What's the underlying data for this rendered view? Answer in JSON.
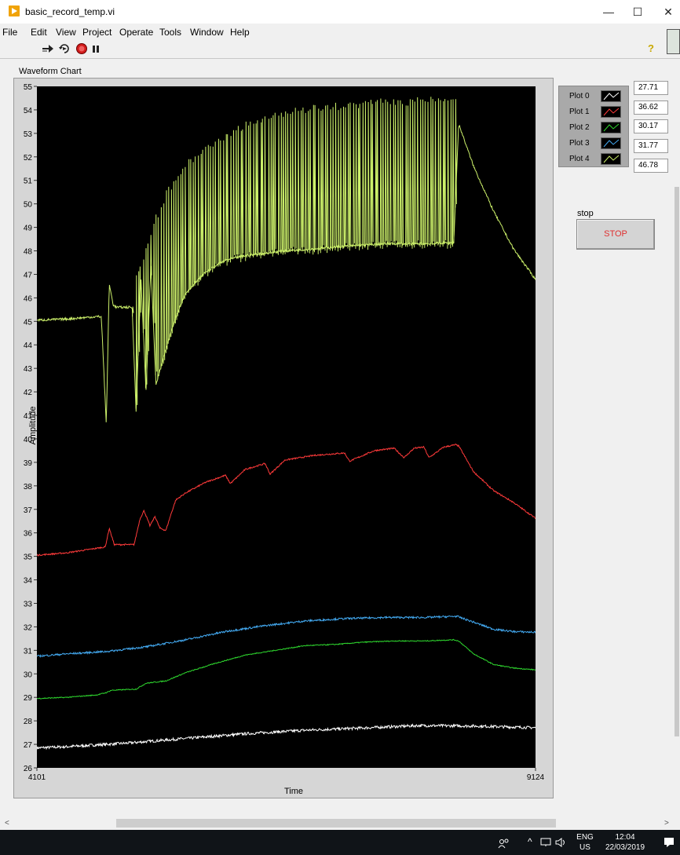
{
  "window": {
    "title": "basic_record_temp.vi",
    "minimize": "—",
    "maximize": "☐",
    "close": "✕"
  },
  "menu": [
    "File",
    "Edit",
    "View",
    "Project",
    "Operate",
    "Tools",
    "Window",
    "Help"
  ],
  "toolbar": {
    "run_icon": "run-arrow-icon",
    "run_continuous_icon": "run-continuously-icon",
    "abort_icon": "abort-icon",
    "pause_icon": "pause-icon",
    "help_icon": "help-icon",
    "help_glyph": "?"
  },
  "chart_label": "Waveform Chart",
  "chart_data": {
    "type": "line",
    "xlabel": "Time",
    "ylabel": "Amplitude",
    "xlim": [
      4101,
      9124
    ],
    "ylim": [
      26,
      55
    ],
    "x_ticks": [
      "4101",
      "9124"
    ],
    "y_ticks": [
      "26",
      "27",
      "28",
      "29",
      "30",
      "31",
      "32",
      "33",
      "34",
      "35",
      "36",
      "37",
      "38",
      "39",
      "40",
      "41",
      "42",
      "43",
      "44",
      "45",
      "46",
      "47",
      "48",
      "49",
      "50",
      "51",
      "52",
      "53",
      "54",
      "55"
    ],
    "background": "#000000",
    "series": [
      {
        "name": "Plot 0",
        "color": "#ffffff",
        "noise": 0.06,
        "points": [
          [
            4101,
            26.85
          ],
          [
            4400,
            26.9
          ],
          [
            5000,
            27.05
          ],
          [
            5600,
            27.25
          ],
          [
            6200,
            27.45
          ],
          [
            6800,
            27.6
          ],
          [
            7400,
            27.7
          ],
          [
            7950,
            27.8
          ],
          [
            8500,
            27.78
          ],
          [
            9124,
            27.71
          ]
        ]
      },
      {
        "name": "Plot 1",
        "color": "#ff3a3a",
        "noise": 0.03,
        "points": [
          [
            4101,
            35.05
          ],
          [
            4400,
            35.15
          ],
          [
            4790,
            35.4
          ],
          [
            4830,
            36.2
          ],
          [
            4880,
            35.5
          ],
          [
            5080,
            35.5
          ],
          [
            5140,
            36.6
          ],
          [
            5180,
            36.95
          ],
          [
            5240,
            36.3
          ],
          [
            5290,
            36.7
          ],
          [
            5340,
            36.2
          ],
          [
            5400,
            36.1
          ],
          [
            5460,
            36.9
          ],
          [
            5500,
            37.4
          ],
          [
            5600,
            37.7
          ],
          [
            5800,
            38.15
          ],
          [
            6000,
            38.45
          ],
          [
            6050,
            38.1
          ],
          [
            6200,
            38.7
          ],
          [
            6400,
            38.95
          ],
          [
            6450,
            38.5
          ],
          [
            6600,
            39.1
          ],
          [
            6900,
            39.3
          ],
          [
            7200,
            39.4
          ],
          [
            7250,
            39.05
          ],
          [
            7500,
            39.5
          ],
          [
            7700,
            39.6
          ],
          [
            7800,
            39.2
          ],
          [
            7900,
            39.6
          ],
          [
            8000,
            39.65
          ],
          [
            8050,
            39.2
          ],
          [
            8200,
            39.65
          ],
          [
            8320,
            39.75
          ],
          [
            8350,
            39.7
          ],
          [
            8500,
            38.6
          ],
          [
            8700,
            37.8
          ],
          [
            8900,
            37.3
          ],
          [
            9124,
            36.62
          ]
        ]
      },
      {
        "name": "Plot 2",
        "color": "#2ed62e",
        "noise": 0.02,
        "points": [
          [
            4101,
            28.95
          ],
          [
            4400,
            29.0
          ],
          [
            4700,
            29.1
          ],
          [
            4800,
            29.2
          ],
          [
            4850,
            29.3
          ],
          [
            5100,
            29.35
          ],
          [
            5200,
            29.6
          ],
          [
            5400,
            29.7
          ],
          [
            5600,
            30.05
          ],
          [
            5900,
            30.45
          ],
          [
            6200,
            30.8
          ],
          [
            6500,
            31.0
          ],
          [
            6800,
            31.2
          ],
          [
            7100,
            31.25
          ],
          [
            7400,
            31.35
          ],
          [
            7700,
            31.4
          ],
          [
            8000,
            31.4
          ],
          [
            8300,
            31.45
          ],
          [
            8350,
            31.4
          ],
          [
            8500,
            30.85
          ],
          [
            8700,
            30.4
          ],
          [
            8900,
            30.25
          ],
          [
            9124,
            30.17
          ]
        ]
      },
      {
        "name": "Plot 3",
        "color": "#43aaf2",
        "noise": 0.04,
        "points": [
          [
            4101,
            30.75
          ],
          [
            4400,
            30.85
          ],
          [
            4800,
            30.95
          ],
          [
            5200,
            31.15
          ],
          [
            5600,
            31.45
          ],
          [
            6000,
            31.8
          ],
          [
            6400,
            32.05
          ],
          [
            6800,
            32.25
          ],
          [
            7200,
            32.35
          ],
          [
            7600,
            32.4
          ],
          [
            8000,
            32.4
          ],
          [
            8330,
            32.45
          ],
          [
            8500,
            32.2
          ],
          [
            8700,
            31.9
          ],
          [
            8900,
            31.8
          ],
          [
            9124,
            31.77
          ]
        ]
      },
      {
        "name": "Plot 4",
        "color": "#ccf06a",
        "noise": 0.05,
        "points": [
          [
            4101,
            45.05
          ],
          [
            4400,
            45.1
          ],
          [
            4700,
            45.2
          ],
          [
            4750,
            45.2
          ],
          [
            4800,
            40.6
          ],
          [
            4830,
            46.6
          ],
          [
            4870,
            45.7
          ],
          [
            4900,
            45.6
          ],
          [
            5060,
            45.6
          ],
          [
            5100,
            41.2
          ],
          [
            5150,
            46.8
          ],
          [
            5200,
            42.0
          ],
          [
            5250,
            47.4
          ],
          [
            5300,
            42.3
          ],
          [
            5400,
            43.8
          ],
          [
            5500,
            45.2
          ],
          [
            5600,
            46.2
          ],
          [
            5800,
            47.1
          ],
          [
            6000,
            47.6
          ],
          [
            6200,
            47.8
          ],
          [
            6400,
            47.9
          ],
          [
            6600,
            48.0
          ],
          [
            6800,
            48.05
          ],
          [
            7200,
            48.2
          ],
          [
            7600,
            48.3
          ],
          [
            8000,
            48.3
          ],
          [
            8300,
            48.35
          ],
          [
            8350,
            53.4
          ],
          [
            8500,
            51.6
          ],
          [
            8700,
            49.7
          ],
          [
            8900,
            48.1
          ],
          [
            9124,
            46.78
          ]
        ],
        "upper_envelope": [
          [
            5060,
            45.6
          ],
          [
            5100,
            47.0
          ],
          [
            5200,
            48.3
          ],
          [
            5300,
            49.6
          ],
          [
            5400,
            50.6
          ],
          [
            5600,
            51.8
          ],
          [
            5800,
            52.6
          ],
          [
            6000,
            53.1
          ],
          [
            6200,
            53.5
          ],
          [
            6400,
            53.8
          ],
          [
            6600,
            54.05
          ],
          [
            6800,
            54.2
          ],
          [
            7200,
            54.35
          ],
          [
            7600,
            54.5
          ],
          [
            8000,
            54.55
          ],
          [
            8330,
            54.6
          ]
        ],
        "pulse_count": 130
      }
    ]
  },
  "legend": {
    "items": [
      {
        "label": "Plot 0",
        "color": "#ffffff"
      },
      {
        "label": "Plot 1",
        "color": "#ff3a3a"
      },
      {
        "label": "Plot 2",
        "color": "#2ed62e"
      },
      {
        "label": "Plot 3",
        "color": "#43aaf2"
      },
      {
        "label": "Plot 4",
        "color": "#ccf06a"
      }
    ]
  },
  "indicators": [
    "27.71",
    "36.62",
    "30.17",
    "31.77",
    "46.78"
  ],
  "stop": {
    "label": "stop",
    "button": "STOP"
  },
  "taskbar": {
    "people_icon": "people-icon",
    "chevron": "^",
    "lang": "ENG",
    "region": "US",
    "time": "12:04",
    "date": "22/03/2019",
    "notification_icon": "notification-icon"
  }
}
